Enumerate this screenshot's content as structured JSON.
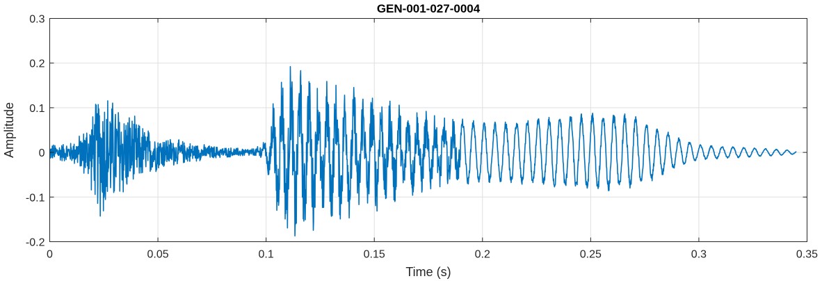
{
  "chart_data": {
    "type": "line",
    "title": "GEN-001-027-0004",
    "xlabel": "Time (s)",
    "ylabel": "Amplitude",
    "xlim": [
      0,
      0.35
    ],
    "ylim": [
      -0.2,
      0.3
    ],
    "xticks": [
      0,
      0.05,
      0.1,
      0.15,
      0.2,
      0.25,
      0.3,
      0.35
    ],
    "xtick_labels": [
      "0",
      "0.05",
      "0.1",
      "0.15",
      "0.2",
      "0.25",
      "0.3",
      "0.35"
    ],
    "yticks": [
      -0.2,
      -0.1,
      0,
      0.1,
      0.2,
      0.3
    ],
    "ytick_labels": [
      "-0.2",
      "-0.1",
      "0",
      "0.1",
      "0.2",
      "0.3"
    ],
    "grid": true,
    "line_color": "#0072BD",
    "series": [
      {
        "x": [
          0,
          0.01,
          0.015,
          0.02,
          0.023,
          0.025,
          0.028,
          0.03,
          0.033,
          0.035,
          0.04,
          0.045,
          0.05,
          0.06,
          0.07,
          0.08,
          0.09,
          0.095,
          0.1,
          0.103,
          0.105,
          0.108,
          0.11,
          0.113,
          0.115,
          0.118,
          0.12,
          0.125,
          0.13,
          0.14,
          0.15,
          0.16,
          0.17,
          0.18,
          0.19,
          0.2,
          0.21,
          0.22,
          0.23,
          0.24,
          0.25,
          0.26,
          0.27,
          0.28,
          0.29,
          0.3,
          0.31,
          0.32,
          0.33,
          0.34,
          0.345
        ],
        "envelope": [
          0.02,
          0.025,
          0.05,
          0.1,
          0.16,
          0.17,
          0.14,
          0.13,
          0.12,
          0.11,
          0.08,
          0.06,
          0.045,
          0.03,
          0.02,
          0.013,
          0.01,
          0.01,
          0.03,
          0.12,
          0.16,
          0.19,
          0.2,
          0.22,
          0.21,
          0.19,
          0.18,
          0.17,
          0.16,
          0.15,
          0.14,
          0.12,
          0.1,
          0.085,
          0.075,
          0.07,
          0.07,
          0.075,
          0.08,
          0.085,
          0.09,
          0.09,
          0.085,
          0.06,
          0.035,
          0.018,
          0.014,
          0.012,
          0.009,
          0.006,
          0.004
        ]
      }
    ]
  }
}
